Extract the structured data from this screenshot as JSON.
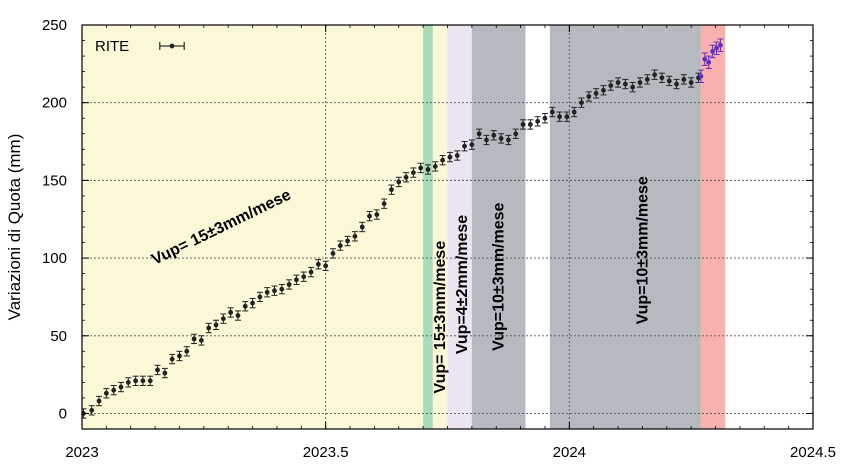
{
  "chart_data": {
    "type": "scatter",
    "title": "",
    "xlabel": "",
    "ylabel": "Variazioni di Quota (mm)",
    "xlim": [
      2023,
      2024.5
    ],
    "ylim": [
      -10,
      250
    ],
    "x_ticks": [
      "2023",
      "2023.5",
      "2024",
      "2024.5"
    ],
    "y_ticks": [
      "0",
      "50",
      "100",
      "150",
      "200",
      "250"
    ],
    "grid": true,
    "legend": {
      "label": "RITE",
      "position": "top-left",
      "error_bar_half_width_years": 0.05
    },
    "shaded_periods": [
      {
        "x0": 2023.0,
        "x1": 2023.7,
        "color": "#fbf8d8"
      },
      {
        "x0": 2023.7,
        "x1": 2023.72,
        "color": "#a8dcb8"
      },
      {
        "x0": 2023.72,
        "x1": 2023.75,
        "color": "#fbf8d8"
      },
      {
        "x0": 2023.75,
        "x1": 2023.8,
        "color": "#ece4f2"
      },
      {
        "x0": 2023.8,
        "x1": 2023.91,
        "color": "#b6bac0"
      },
      {
        "x0": 2023.96,
        "x1": 2024.27,
        "color": "#b6bac0"
      },
      {
        "x0": 2024.27,
        "x1": 2024.32,
        "color": "#fbb0b0"
      }
    ],
    "annotations": [
      {
        "text": "Vup= 15±3mm/mese",
        "x": 2023.29,
        "y": 117,
        "rotation": -26
      },
      {
        "text": "Vup= 15±3mm/mese",
        "x": 2023.745,
        "y": 62,
        "rotation": -90
      },
      {
        "text": "Vup=4±2mm/mese",
        "x": 2023.79,
        "y": 83,
        "rotation": -90
      },
      {
        "text": "Vup=10±3mm/mese",
        "x": 2023.865,
        "y": 88,
        "rotation": -90
      },
      {
        "text": "Vup=10±3mm/mese",
        "x": 2024.16,
        "y": 105,
        "rotation": -90
      }
    ],
    "series": [
      {
        "color": "#222222",
        "error_mm": 3,
        "x": [
          2023.003,
          2023.02,
          2023.035,
          2023.05,
          2023.065,
          2023.08,
          2023.095,
          2023.11,
          2023.125,
          2023.14,
          2023.155,
          2023.17,
          2023.185,
          2023.2,
          2023.215,
          2023.23,
          2023.245,
          2023.26,
          2023.275,
          2023.29,
          2023.305,
          2023.32,
          2023.335,
          2023.35,
          2023.365,
          2023.38,
          2023.395,
          2023.41,
          2023.425,
          2023.44,
          2023.455,
          2023.47,
          2023.485,
          2023.5,
          2023.515,
          2023.53,
          2023.545,
          2023.56,
          2023.575,
          2023.59,
          2023.605,
          2023.62,
          2023.635,
          2023.65,
          2023.665,
          2023.68,
          2023.695,
          2023.71,
          2023.725,
          2023.74,
          2023.755,
          2023.77,
          2023.785,
          2023.8,
          2023.815,
          2023.83,
          2023.845,
          2023.86,
          2023.875,
          2023.89,
          2023.905,
          2023.92,
          2023.935,
          2023.95,
          2023.965,
          2023.98,
          2023.995,
          2024.01,
          2024.025,
          2024.04,
          2024.055,
          2024.07,
          2024.085,
          2024.1,
          2024.115,
          2024.13,
          2024.145,
          2024.16,
          2024.175,
          2024.19,
          2024.205,
          2024.22,
          2024.235,
          2024.25,
          2024.265
        ],
        "y": [
          0,
          2,
          8,
          13,
          15,
          17,
          20,
          21,
          21,
          21,
          28,
          26,
          35,
          37,
          40,
          48,
          47,
          55,
          57,
          61,
          65,
          63,
          69,
          71,
          75,
          78,
          79,
          80,
          83,
          86,
          88,
          91,
          96,
          95,
          103,
          108,
          111,
          114,
          120,
          127,
          128,
          135,
          144,
          149,
          152,
          155,
          158,
          157,
          159,
          163,
          165,
          166,
          172,
          173,
          180,
          176,
          179,
          177,
          176,
          180,
          186,
          186,
          188,
          190,
          194,
          191,
          191,
          194,
          200,
          204,
          206,
          208,
          211,
          213,
          212,
          210,
          213,
          215,
          218,
          216,
          214,
          212,
          215,
          213,
          216
        ]
      },
      {
        "color": "#5a2fc4",
        "error_mm": 4,
        "x": [
          2024.27,
          2024.278,
          2024.286,
          2024.294,
          2024.302,
          2024.31
        ],
        "y": [
          217,
          228,
          226,
          233,
          235,
          237
        ]
      }
    ]
  }
}
